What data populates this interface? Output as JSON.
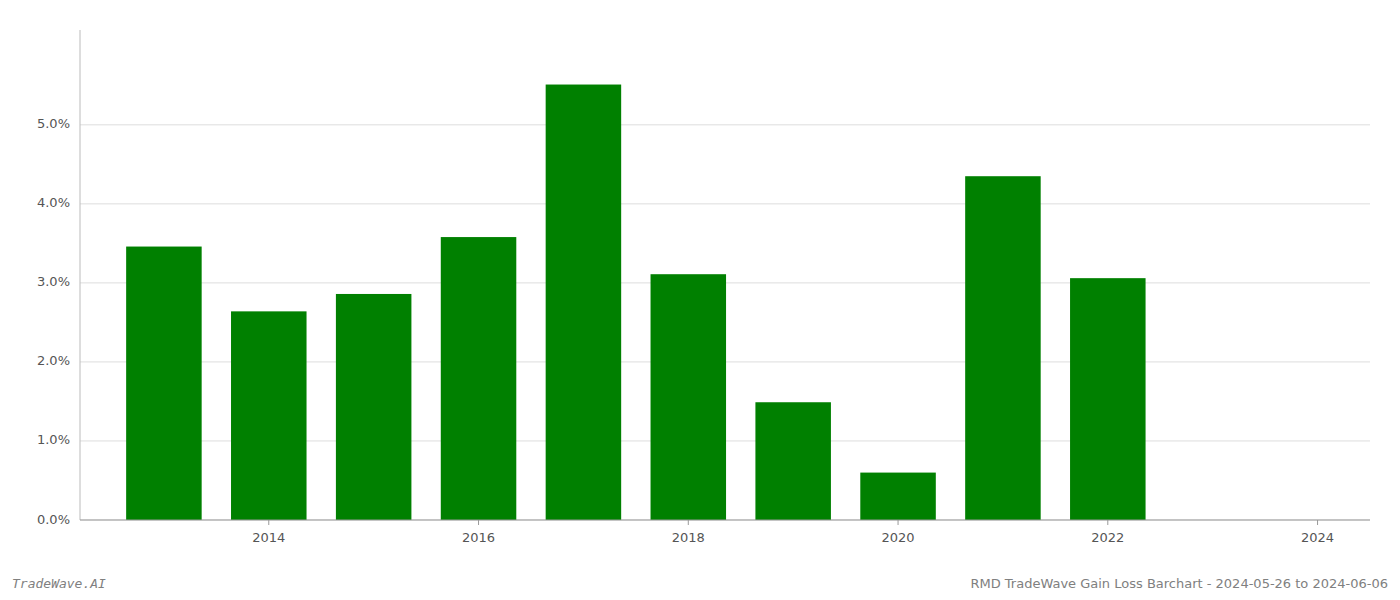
{
  "chart_data": {
    "type": "bar",
    "x": [
      2013,
      2014,
      2015,
      2016,
      2017,
      2018,
      2019,
      2020,
      2021,
      2022
    ],
    "values": [
      0.0346,
      0.0264,
      0.0286,
      0.0358,
      0.0551,
      0.0311,
      0.0149,
      0.006,
      0.0435,
      0.0306
    ],
    "color": "#008000",
    "xlim": [
      2012.2,
      2024.5
    ],
    "xticks": [
      2014,
      2016,
      2018,
      2020,
      2022,
      2024
    ],
    "ylim": [
      0.0,
      0.062
    ],
    "yticks": [
      {
        "value": 0.0,
        "label": "0.0%"
      },
      {
        "value": 0.01,
        "label": "1.0%"
      },
      {
        "value": 0.02,
        "label": "2.0%"
      },
      {
        "value": 0.03,
        "label": "3.0%"
      },
      {
        "value": 0.04,
        "label": "4.0%"
      },
      {
        "value": 0.05,
        "label": "5.0%"
      }
    ],
    "grid": true,
    "annotations": [
      "TradeWave.AI",
      "RMD TradeWave Gain Loss Barchart - 2024-05-26 to 2024-06-06"
    ]
  }
}
